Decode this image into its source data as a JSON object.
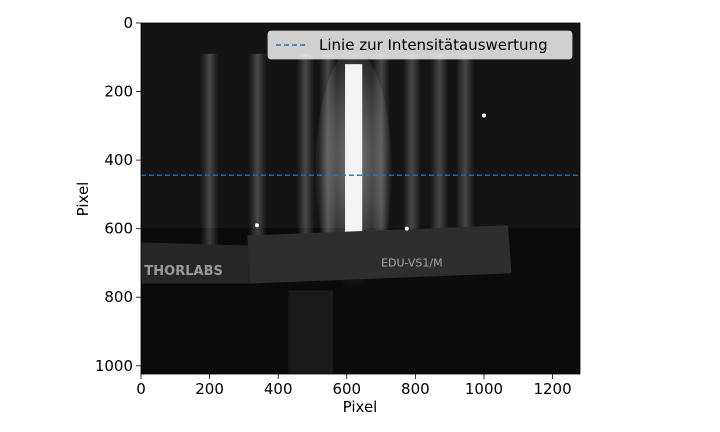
{
  "chart_data": {
    "type": "heatmap",
    "image_kind": "grayscale camera frame",
    "xlabel": "Pixel",
    "ylabel": "Pixel",
    "xlim": [
      0,
      1280
    ],
    "ylim": [
      1024,
      0
    ],
    "xticks": [
      0,
      200,
      400,
      600,
      800,
      1000,
      1200
    ],
    "yticks": [
      0,
      200,
      400,
      600,
      800,
      1000
    ],
    "grid": false,
    "legend": {
      "placement": "top-right",
      "entries": [
        "Linie zur Intensitätauswertung"
      ]
    },
    "series": [
      {
        "name": "Linie zur Intensitätauswertung",
        "type": "horizontal-line",
        "y": 444,
        "style": "dashed",
        "color": "#1f77b4"
      }
    ],
    "image_features": {
      "bright_slit_x": [
        595,
        645
      ],
      "bright_slit_y": [
        120,
        740
      ],
      "fringes_x": [
        200,
        340,
        480,
        545,
        700,
        790,
        870,
        945
      ],
      "card_text": [
        "THORLABS",
        "EDU-VS1/M"
      ],
      "hot_spots": [
        [
          1000,
          270
        ],
        [
          338,
          590
        ],
        [
          775,
          600
        ]
      ]
    },
    "colors": {
      "line": "#1f77b4",
      "background": "#ffffff",
      "image_dark": "#0b0b0b"
    }
  }
}
